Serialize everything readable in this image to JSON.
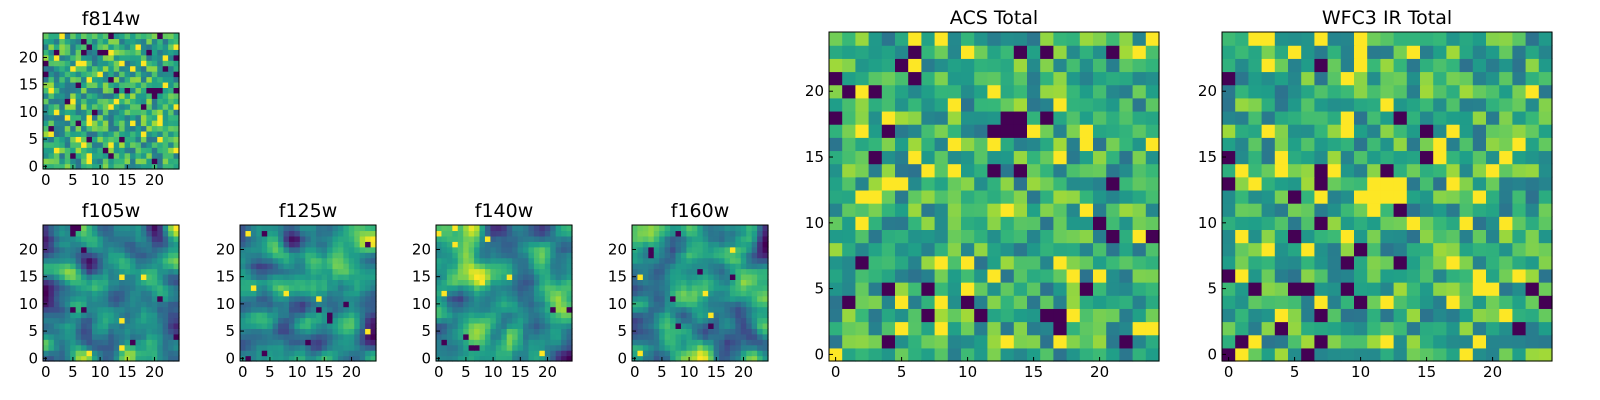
{
  "figure": {
    "background": "#ffffff",
    "colormap": "viridis"
  },
  "chart_data": [
    {
      "type": "heatmap",
      "name": "f814w",
      "title": "f814w",
      "grid_size": 25,
      "pattern": "noise",
      "seed": 11,
      "xticks": [
        "0",
        "5",
        "10",
        "15",
        "20"
      ],
      "yticks": [
        "0",
        "5",
        "10",
        "15",
        "20"
      ]
    },
    {
      "type": "heatmap",
      "name": "f105w",
      "title": "f105w",
      "grid_size": 25,
      "pattern": "smooth",
      "seed": 23,
      "xticks": [
        "0",
        "5",
        "10",
        "15",
        "20"
      ],
      "yticks": [
        "0",
        "5",
        "10",
        "15",
        "20"
      ]
    },
    {
      "type": "heatmap",
      "name": "f125w",
      "title": "f125w",
      "grid_size": 25,
      "pattern": "smooth",
      "seed": 37,
      "xticks": [
        "0",
        "5",
        "10",
        "15",
        "20"
      ],
      "yticks": [
        "0",
        "5",
        "10",
        "15",
        "20"
      ]
    },
    {
      "type": "heatmap",
      "name": "f140w",
      "title": "f140w",
      "grid_size": 25,
      "pattern": "smooth",
      "seed": 41,
      "xticks": [
        "0",
        "5",
        "10",
        "15",
        "20"
      ],
      "yticks": [
        "0",
        "5",
        "10",
        "15",
        "20"
      ]
    },
    {
      "type": "heatmap",
      "name": "f160w",
      "title": "f160w",
      "grid_size": 25,
      "pattern": "smooth",
      "seed": 53,
      "xticks": [
        "0",
        "5",
        "10",
        "15",
        "20"
      ],
      "yticks": [
        "0",
        "5",
        "10",
        "15",
        "20"
      ]
    },
    {
      "type": "heatmap",
      "name": "acs-total",
      "title": "ACS Total",
      "grid_size": 25,
      "pattern": "noise",
      "seed": 67,
      "xticks": [
        "0",
        "5",
        "10",
        "15",
        "20"
      ],
      "yticks": [
        "0",
        "5",
        "10",
        "15",
        "20"
      ],
      "features": [
        {
          "x": 12,
          "y": 17,
          "w": 2,
          "h": 1,
          "value": 0.0
        }
      ]
    },
    {
      "type": "heatmap",
      "name": "wfc3-ir-total",
      "title": "WFC3 IR Total",
      "grid_size": 25,
      "pattern": "noise",
      "seed": 79,
      "xticks": [
        "0",
        "5",
        "10",
        "15",
        "20"
      ],
      "yticks": [
        "0",
        "5",
        "10",
        "15",
        "20"
      ],
      "features": [
        {
          "x": 11,
          "y": 12,
          "w": 3,
          "h": 2,
          "value": 1.0
        }
      ]
    }
  ]
}
